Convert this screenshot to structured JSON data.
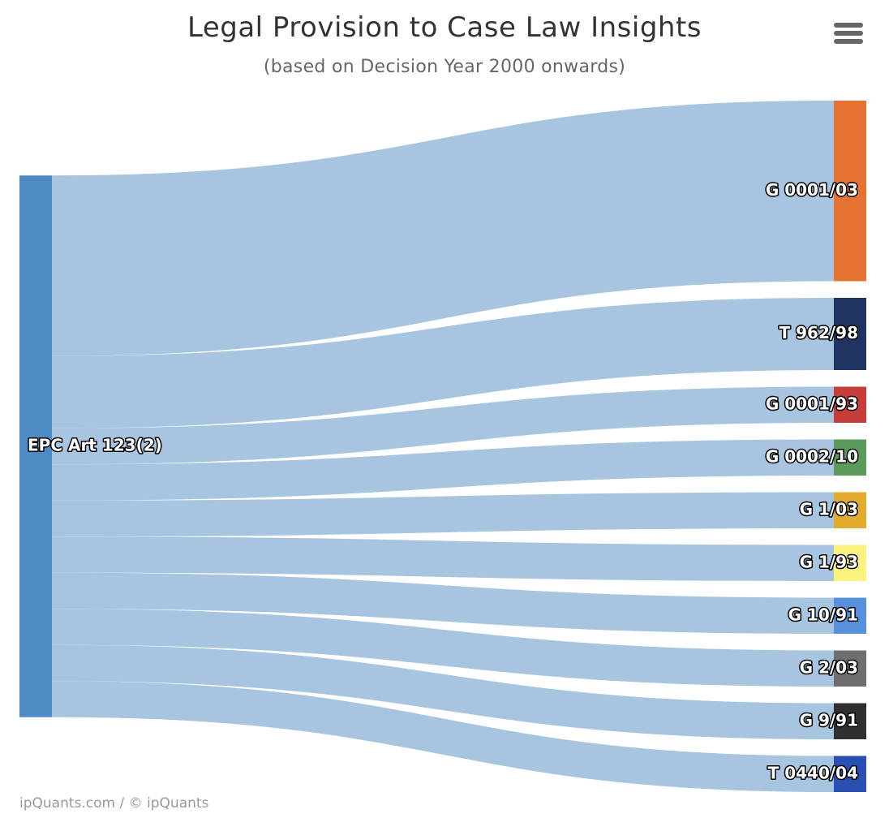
{
  "header": {
    "title": "Legal Provision to Case Law Insights",
    "subtitle": "(based on Decision Year 2000 onwards)"
  },
  "menu": {
    "icon": "hamburger-menu-icon"
  },
  "credits": {
    "text": "ipQuants.com / © ipQuants"
  },
  "colors": {
    "link": "#a7c4e0",
    "source_node": "#4d8bc4"
  },
  "chart_data": {
    "type": "sankey",
    "source": {
      "name": "EPC Art 123(2)",
      "color": "#4d8bc4"
    },
    "targets": [
      {
        "name": "G 0001/03",
        "value": 5,
        "color": "#e67332"
      },
      {
        "name": "T 962/98",
        "value": 2,
        "color": "#1f3461"
      },
      {
        "name": "G 0001/93",
        "value": 1,
        "color": "#c63d3a"
      },
      {
        "name": "G 0002/10",
        "value": 1,
        "color": "#5a9a5a"
      },
      {
        "name": "G 1/03",
        "value": 1,
        "color": "#e3ac2f"
      },
      {
        "name": "G 1/93",
        "value": 1,
        "color": "#fbf37d"
      },
      {
        "name": "G 10/91",
        "value": 1,
        "color": "#5891db"
      },
      {
        "name": "G 2/03",
        "value": 1,
        "color": "#6f6f6f"
      },
      {
        "name": "G 9/91",
        "value": 1,
        "color": "#303030"
      },
      {
        "name": "T 0440/04",
        "value": 1,
        "color": "#2a4fb4"
      }
    ]
  }
}
